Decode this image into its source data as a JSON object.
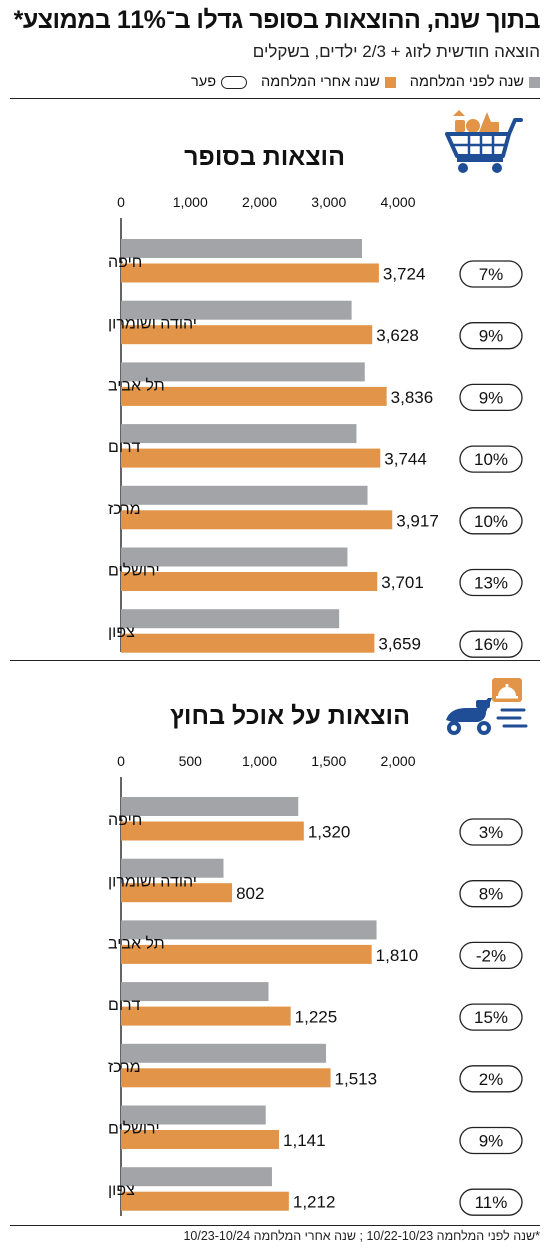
{
  "title": "בתוך שנה, ההוצאות בסופר גדלו ב־11% בממוצע*",
  "subtitle": "הוצאה חודשית לזוג + 2/3 ילדים, בשקלים",
  "legend": {
    "before": "שנה לפני המלחמה",
    "after": "שנה אחרי המלחמה",
    "gap": "פער"
  },
  "colors": {
    "before": "#a3a4a8",
    "after": "#e29548",
    "text": "#111111"
  },
  "footnote": "*שנה לפני המלחמה 10/22-10/23 ; שנה אחרי המלחמה 10/23-10/24",
  "chart_data": [
    {
      "type": "bar",
      "title": "הוצאות בסופר",
      "icon": "shopping-cart-icon",
      "xlim": [
        0,
        4000
      ],
      "ticks": [
        "0",
        "1,000",
        "2,000",
        "3,000",
        "4,000"
      ],
      "tick_values": [
        0,
        1000,
        2000,
        3000,
        4000
      ],
      "categories": [
        "חיפה",
        "יהודה ושומרון",
        "תל אביב",
        "דרום",
        "מרכז",
        "ירושלים",
        "צפון"
      ],
      "series": [
        {
          "name": "שנה לפני המלחמה",
          "values": [
            3480,
            3330,
            3520,
            3400,
            3560,
            3270,
            3150
          ]
        },
        {
          "name": "שנה אחרי המלחמה",
          "values": [
            3724,
            3628,
            3836,
            3744,
            3917,
            3701,
            3659
          ]
        }
      ],
      "after_labels": [
        "3,724",
        "3,628",
        "3,836",
        "3,744",
        "3,917",
        "3,701",
        "3,659"
      ],
      "gap_labels": [
        "7%",
        "9%",
        "9%",
        "10%",
        "10%",
        "13%",
        "16%"
      ]
    },
    {
      "type": "bar",
      "title": "הוצאות על אוכל בחוץ",
      "icon": "delivery-scooter-icon",
      "xlim": [
        0,
        2000
      ],
      "ticks": [
        "0",
        "500",
        "1,000",
        "1,500",
        "2,000"
      ],
      "tick_values": [
        0,
        500,
        1000,
        1500,
        2000
      ],
      "categories": [
        "חיפה",
        "יהודה ושומרון",
        "תל אביב",
        "דרום",
        "מרכז",
        "ירושלים",
        "צפון"
      ],
      "series": [
        {
          "name": "שנה לפני המלחמה",
          "values": [
            1280,
            740,
            1845,
            1065,
            1480,
            1045,
            1090
          ]
        },
        {
          "name": "שנה אחרי המלחמה",
          "values": [
            1320,
            802,
            1810,
            1225,
            1513,
            1141,
            1212
          ]
        }
      ],
      "after_labels": [
        "1,320",
        "802",
        "1,810",
        "1,225",
        "1,513",
        "1,141",
        "1,212"
      ],
      "gap_labels": [
        "3%",
        "8%",
        "-2%",
        "15%",
        "2%",
        "9%",
        "11%"
      ]
    }
  ]
}
